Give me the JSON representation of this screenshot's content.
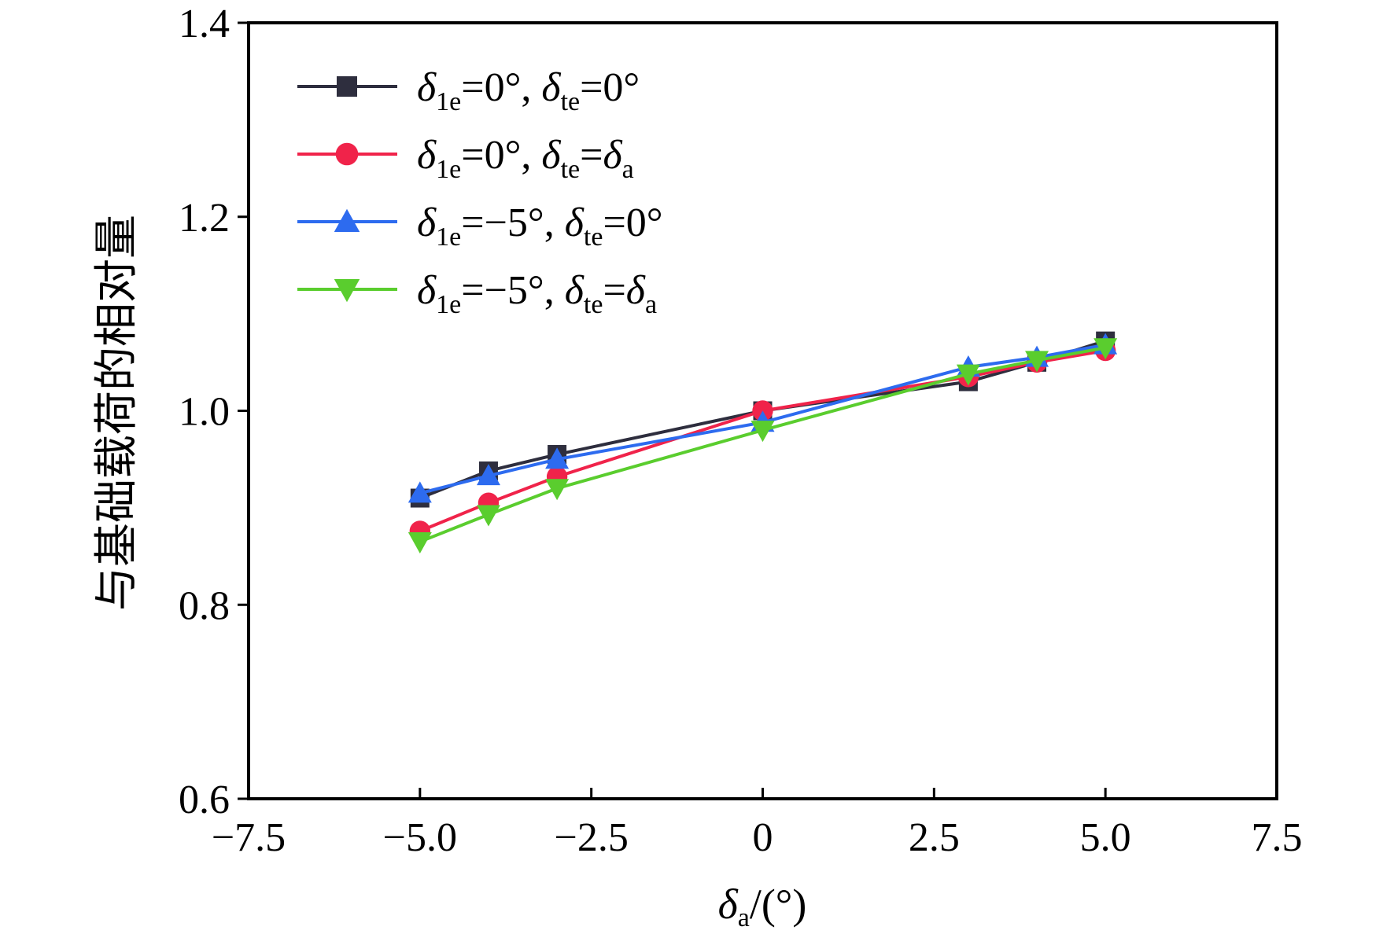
{
  "chart_data": {
    "type": "line",
    "xlabel": {
      "symbol": "δ",
      "sub": "a",
      "rest": "/(°)"
    },
    "ylabel": "与基础载荷的相对量",
    "xlim": [
      -7.5,
      7.5
    ],
    "ylim": [
      0.6,
      1.4
    ],
    "xticks": [
      -7.5,
      -5.0,
      -2.5,
      0,
      2.5,
      5.0,
      7.5
    ],
    "xtick_labels": [
      "−7.5",
      "−5.0",
      "−2.5",
      "0",
      "2.5",
      "5.0",
      "7.5"
    ],
    "yticks": [
      0.6,
      0.8,
      1.0,
      1.2,
      1.4
    ],
    "ytick_labels": [
      "0.6",
      "0.8",
      "1.0",
      "1.2",
      "1.4"
    ],
    "grid": false,
    "legend_position": "top-left",
    "x": [
      -5,
      -4,
      -3,
      0,
      3,
      4,
      5
    ],
    "series": [
      {
        "name": "δ1e=0°, δte=0°",
        "legend": {
          "a": "δ",
          "a_sub": "1e",
          "b": "=0°, ",
          "c": "δ",
          "c_sub": "te",
          "d": "=0°",
          "e": "",
          "e_sub": ""
        },
        "marker": "square",
        "color": "#2e2e3e",
        "values": [
          0.91,
          0.938,
          0.955,
          1.0,
          1.03,
          1.05,
          1.072
        ]
      },
      {
        "name": "δ1e=0°, δte=δa",
        "legend": {
          "a": "δ",
          "a_sub": "1e",
          "b": "=0°, ",
          "c": "δ",
          "c_sub": "te",
          "d": "=",
          "e": "δ",
          "e_sub": "a"
        },
        "marker": "circle",
        "color": "#f0234a",
        "values": [
          0.876,
          0.905,
          0.932,
          1.0,
          1.035,
          1.05,
          1.062
        ]
      },
      {
        "name": "δ1e=−5°, δte=0°",
        "legend": {
          "a": "δ",
          "a_sub": "1e",
          "b": "=−5°, ",
          "c": "δ",
          "c_sub": "te",
          "d": "=0°",
          "e": "",
          "e_sub": ""
        },
        "marker": "triangle-up",
        "color": "#2d6bef",
        "values": [
          0.915,
          0.933,
          0.95,
          0.988,
          1.045,
          1.055,
          1.068
        ]
      },
      {
        "name": "δ1e=−5°, δte=δa",
        "legend": {
          "a": "δ",
          "a_sub": "1e",
          "b": "=−5°, ",
          "c": "δ",
          "c_sub": "te",
          "d": "=",
          "e": "δ",
          "e_sub": "a"
        },
        "marker": "triangle-down",
        "color": "#5acd2e",
        "values": [
          0.865,
          0.893,
          0.92,
          0.98,
          1.038,
          1.052,
          1.065
        ]
      }
    ]
  }
}
